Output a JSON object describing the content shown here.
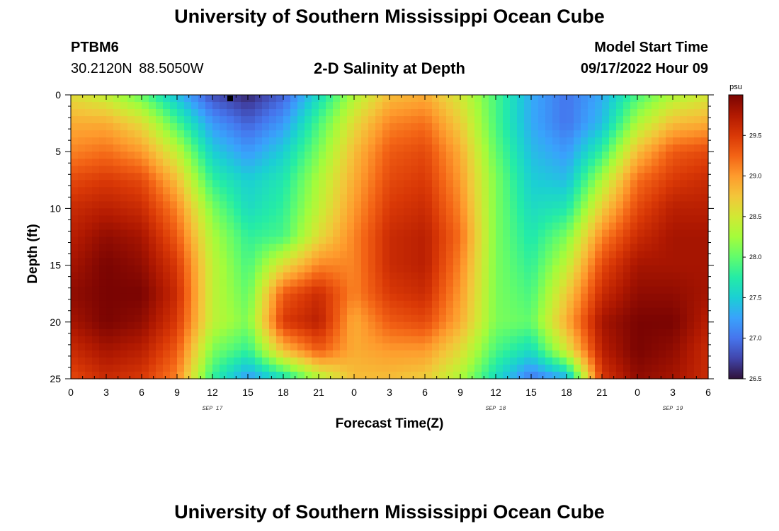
{
  "page": {
    "title_top": "University of Southern Mississippi Ocean Cube",
    "title_bottom": "University of Southern Mississippi Ocean Cube",
    "station_id": "PTBM6",
    "coordinates": "30.2120N  88.5050W",
    "plot_title": "2-D Salinity at Depth",
    "model_start_label": "Model Start Time",
    "model_start_value": "09/17/2022 Hour 09"
  },
  "colors": {
    "colormap": [
      "#30123b",
      "#4145ab",
      "#4675ed",
      "#39a2fc",
      "#1bcfd4",
      "#24eca6",
      "#61fc6c",
      "#a4fc3b",
      "#d1e834",
      "#f3c63a",
      "#fe9b2d",
      "#f36315",
      "#d93806",
      "#b11901",
      "#7a0402"
    ],
    "marker": "#000000"
  },
  "chart_data": {
    "type": "heatmap",
    "xlabel": "Forecast Time(Z)",
    "ylabel": "Depth (ft)",
    "x_ticks": [
      "0",
      "3",
      "6",
      "9",
      "12",
      "15",
      "18",
      "21",
      "0",
      "3",
      "6",
      "9",
      "12",
      "15",
      "18",
      "21",
      "0",
      "3",
      "6"
    ],
    "x_hours_range": [
      0,
      54
    ],
    "date_labels": [
      {
        "text": "SEP 17",
        "hour": 12
      },
      {
        "text": "SEP 18",
        "hour": 36
      },
      {
        "text": "SEP 19",
        "hour": 51
      }
    ],
    "y_ticks": [
      "0",
      "5",
      "10",
      "15",
      "20",
      "25"
    ],
    "ylim": [
      0,
      25
    ],
    "y_reversed": true,
    "colorbar": {
      "unit": "psu",
      "range": [
        26.5,
        30.0
      ],
      "ticks": [
        "26.5",
        "27.0",
        "27.5",
        "28.0",
        "28.5",
        "29.0",
        "29.5"
      ]
    },
    "depths_ft": [
      0,
      2.5,
      5,
      7.5,
      10,
      12.5,
      15,
      17.5,
      20,
      22.5,
      25
    ],
    "hours": [
      0,
      3,
      6,
      9,
      12,
      15,
      18,
      21,
      24,
      27,
      30,
      33,
      36,
      39,
      42,
      45,
      48,
      51,
      54
    ],
    "salinity_psu": [
      [
        28.6,
        28.4,
        28.0,
        27.4,
        26.8,
        26.6,
        26.9,
        27.6,
        28.3,
        28.8,
        28.9,
        28.5,
        27.9,
        27.3,
        27.0,
        27.3,
        27.9,
        28.3,
        28.5
      ],
      [
        28.9,
        28.9,
        28.6,
        27.9,
        27.2,
        26.9,
        27.2,
        27.9,
        28.6,
        29.1,
        29.2,
        28.7,
        27.9,
        27.3,
        27.0,
        27.4,
        28.3,
        28.8,
        28.9
      ],
      [
        29.1,
        29.2,
        29.0,
        28.4,
        27.5,
        27.2,
        27.5,
        28.1,
        28.8,
        29.3,
        29.4,
        28.9,
        28.0,
        27.4,
        27.2,
        27.8,
        28.8,
        29.3,
        29.4
      ],
      [
        29.4,
        29.5,
        29.4,
        28.8,
        27.8,
        27.5,
        27.7,
        28.3,
        28.9,
        29.4,
        29.5,
        29.0,
        28.1,
        27.5,
        27.4,
        28.3,
        29.2,
        29.5,
        29.6
      ],
      [
        29.6,
        29.7,
        29.6,
        29.1,
        28.1,
        27.6,
        27.8,
        28.4,
        29.0,
        29.5,
        29.6,
        29.1,
        28.1,
        27.6,
        27.7,
        28.7,
        29.4,
        29.7,
        29.7
      ],
      [
        29.7,
        29.9,
        29.8,
        29.3,
        28.3,
        27.8,
        27.9,
        28.6,
        29.1,
        29.6,
        29.7,
        29.2,
        28.1,
        27.7,
        28.1,
        29.1,
        29.6,
        29.8,
        29.8
      ],
      [
        29.8,
        30.0,
        29.9,
        29.5,
        28.4,
        27.9,
        28.6,
        29.1,
        29.1,
        29.6,
        29.7,
        29.1,
        28.1,
        27.8,
        28.4,
        29.4,
        29.8,
        29.8,
        29.8
      ],
      [
        29.9,
        30.0,
        30.0,
        29.6,
        28.4,
        28.0,
        29.3,
        29.6,
        29.1,
        29.5,
        29.6,
        29.0,
        28.1,
        27.9,
        28.7,
        29.6,
        29.9,
        29.9,
        29.8
      ],
      [
        29.8,
        30.0,
        29.9,
        29.5,
        28.4,
        28.1,
        29.5,
        29.7,
        28.9,
        29.3,
        29.4,
        28.9,
        28.1,
        28.0,
        28.9,
        29.8,
        30.0,
        30.0,
        29.7
      ],
      [
        29.6,
        29.8,
        29.7,
        29.3,
        28.1,
        27.8,
        28.8,
        29.3,
        28.9,
        29.0,
        29.0,
        28.6,
        27.9,
        27.6,
        28.5,
        29.7,
        30.0,
        29.9,
        29.6
      ],
      [
        29.4,
        29.6,
        29.5,
        29.1,
        27.8,
        27.2,
        27.6,
        28.3,
        28.8,
        28.8,
        28.7,
        28.3,
        27.6,
        27.0,
        27.3,
        29.5,
        29.9,
        29.8,
        29.6
      ]
    ],
    "marker": {
      "hour": 13.5,
      "depth_ft": 0.3
    }
  }
}
